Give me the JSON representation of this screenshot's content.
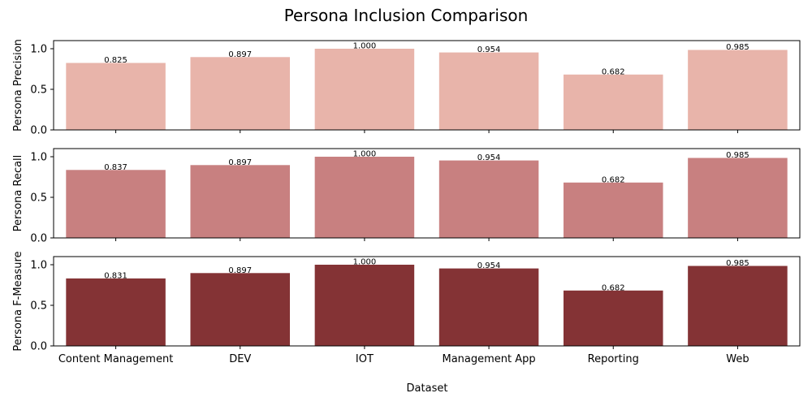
{
  "chart_data": {
    "type": "bar",
    "title": "Persona Inclusion Comparison",
    "xlabel": "Dataset",
    "categories": [
      "Content Management",
      "DEV",
      "IOT",
      "Management App",
      "Reporting",
      "Web"
    ],
    "ylim": [
      0,
      1.1
    ],
    "yticks": [
      "0.0",
      "0.5",
      "1.0"
    ],
    "grid": false,
    "legend": "none",
    "panels": [
      {
        "ylabel": "Persona Precision",
        "color": "#e8b4aa",
        "values": [
          0.825,
          0.897,
          1.0,
          0.954,
          0.682,
          0.985
        ],
        "labels": [
          "0.825",
          "0.897",
          "1.000",
          "0.954",
          "0.682",
          "0.985"
        ]
      },
      {
        "ylabel": "Persona Recall",
        "color": "#c88080",
        "values": [
          0.837,
          0.897,
          1.0,
          0.954,
          0.682,
          0.985
        ],
        "labels": [
          "0.837",
          "0.897",
          "1.000",
          "0.954",
          "0.682",
          "0.985"
        ]
      },
      {
        "ylabel": "Persona F-Measure",
        "color": "#843335",
        "values": [
          0.831,
          0.897,
          1.0,
          0.954,
          0.682,
          0.985
        ],
        "labels": [
          "0.831",
          "0.897",
          "1.000",
          "0.954",
          "0.682",
          "0.985"
        ]
      }
    ]
  }
}
